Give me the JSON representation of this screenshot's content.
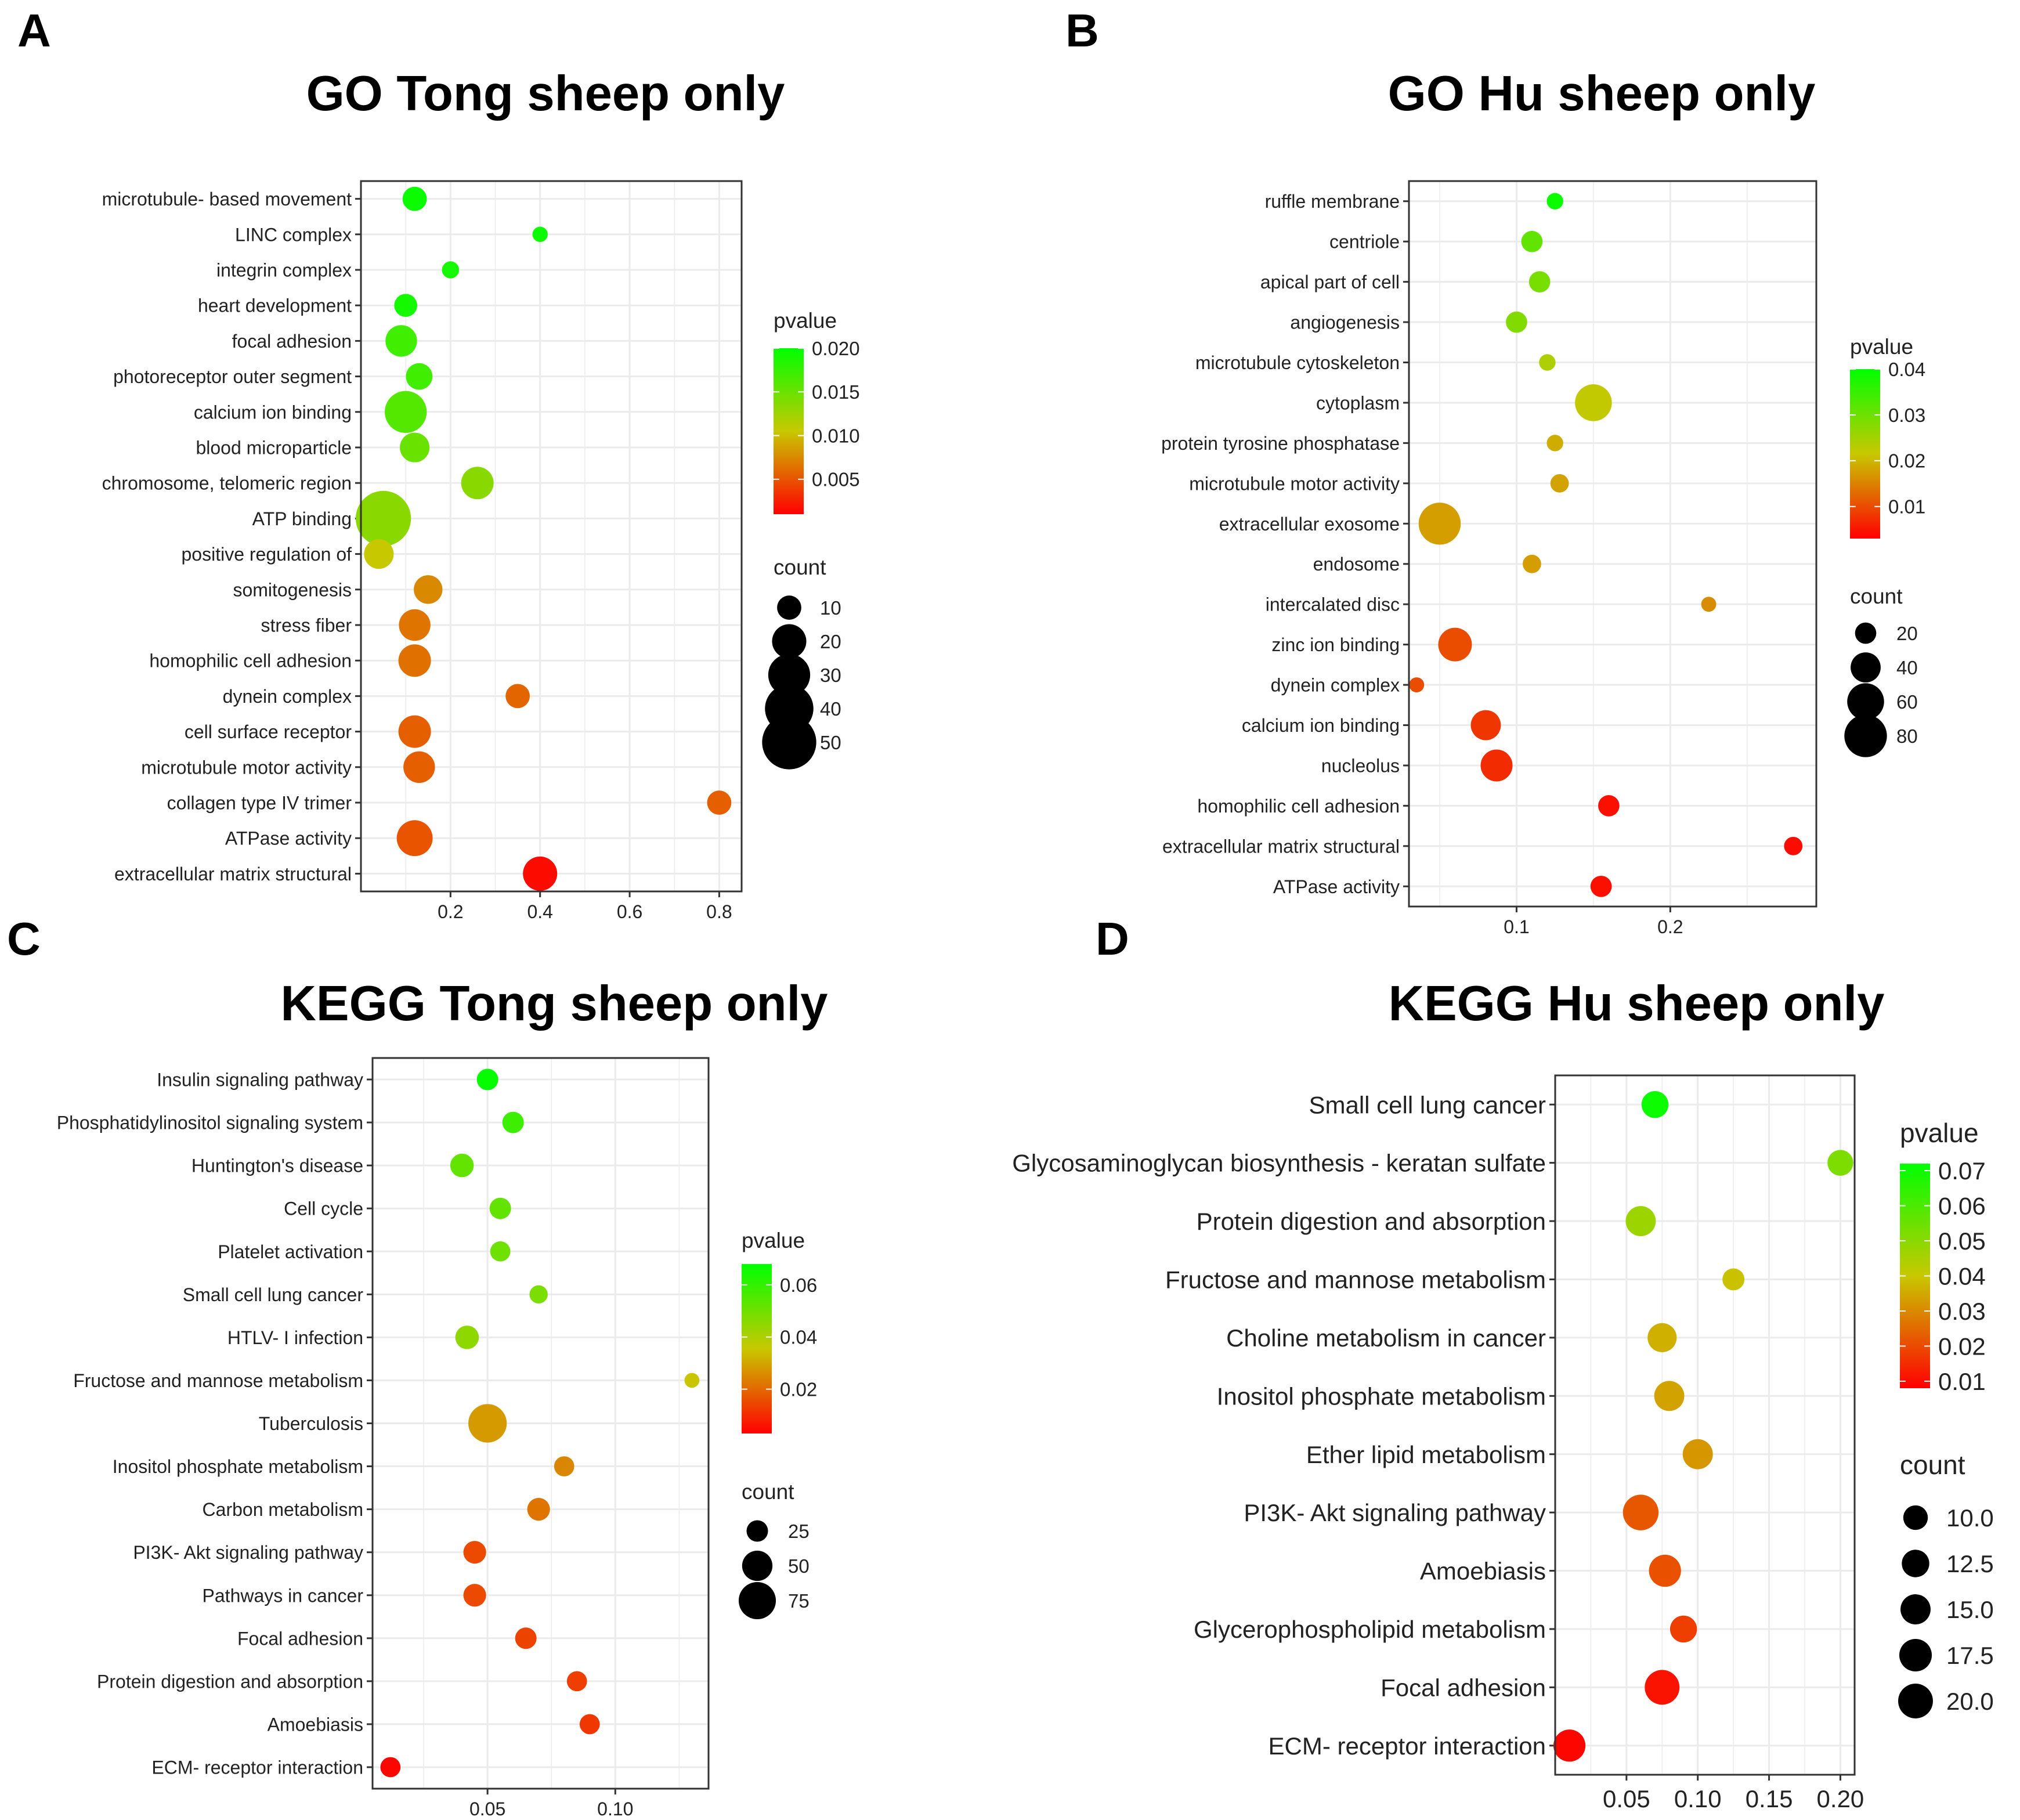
{
  "figure": {
    "panels": [
      {
        "letter": "A",
        "title": "GO Tong sheep only",
        "legend": {
          "color_title": "pvalue",
          "color_ticks": [
            "0.020",
            "0.015",
            "0.010",
            "0.005"
          ],
          "size_title": "count",
          "size_ticks": [
            "10",
            "20",
            "30",
            "40",
            "50"
          ]
        },
        "x_tick_labels": [
          "0.2",
          "0.4",
          "0.6",
          "0.8"
        ]
      },
      {
        "letter": "B",
        "title": "GO Hu sheep only",
        "legend": {
          "color_title": "pvalue",
          "color_ticks": [
            "0.04",
            "0.03",
            "0.02",
            "0.01"
          ],
          "size_title": "count",
          "size_ticks": [
            "20",
            "40",
            "60",
            "80"
          ]
        },
        "x_tick_labels": [
          "0.1",
          "0.2"
        ]
      },
      {
        "letter": "C",
        "title": "KEGG Tong sheep only",
        "legend": {
          "color_title": "pvalue",
          "color_ticks": [
            "0.06",
            "0.04",
            "0.02"
          ],
          "size_title": "count",
          "size_ticks": [
            "25",
            "50",
            "75"
          ]
        },
        "x_tick_labels": [
          "0.05",
          "0.10"
        ]
      },
      {
        "letter": "D",
        "title": "KEGG Hu sheep only",
        "legend": {
          "color_title": "pvalue",
          "color_ticks": [
            "0.07",
            "0.06",
            "0.05",
            "0.04",
            "0.03",
            "0.02",
            "0.01"
          ],
          "size_title": "count",
          "size_ticks": [
            "10.0",
            "12.5",
            "15.0",
            "17.5",
            "20.0"
          ]
        },
        "x_tick_labels": [
          "0.05",
          "0.10",
          "0.15",
          "0.20"
        ]
      }
    ]
  },
  "chart_data": [
    {
      "type": "scatter",
      "subtype": "bubble",
      "title": "GO Tong sheep only",
      "xlabel": "",
      "ylabel": "",
      "xlim": [
        0.0,
        0.85
      ],
      "x_ticks": [
        0.2,
        0.4,
        0.6,
        0.8
      ],
      "grid": true,
      "color_scale": {
        "name": "pvalue",
        "range": [
          0.001,
          0.02
        ],
        "low_color": "#ff0000",
        "mid_color": "#c8c800",
        "high_color": "#00ff00"
      },
      "size_scale": {
        "name": "count",
        "range": [
          3,
          55
        ],
        "breaks": [
          10,
          20,
          30,
          40,
          50
        ]
      },
      "categories": [
        "microtubule- based movement",
        "LINC complex",
        "integrin complex",
        "heart development",
        "focal adhesion",
        "photoreceptor outer segment",
        "calcium ion binding",
        "blood microparticle",
        "chromosome, telomeric region",
        "ATP binding",
        "positive regulation of",
        "somitogenesis",
        "stress fiber",
        "homophilic cell adhesion",
        "dynein complex",
        "cell surface receptor",
        "microtubule motor activity",
        "collagen type IV trimer",
        "ATPase activity",
        "extracellular matrix structural"
      ],
      "points": [
        {
          "label": "microtubule- based movement",
          "x": 0.12,
          "pvalue": 0.0195,
          "count": 10
        },
        {
          "label": "LINC complex",
          "x": 0.4,
          "pvalue": 0.0195,
          "count": 4
        },
        {
          "label": "integrin complex",
          "x": 0.2,
          "pvalue": 0.019,
          "count": 5
        },
        {
          "label": "heart development",
          "x": 0.1,
          "pvalue": 0.019,
          "count": 9
        },
        {
          "label": "focal adhesion",
          "x": 0.09,
          "pvalue": 0.017,
          "count": 17
        },
        {
          "label": "photoreceptor outer segment",
          "x": 0.13,
          "pvalue": 0.017,
          "count": 12
        },
        {
          "label": "calcium ion binding",
          "x": 0.1,
          "pvalue": 0.016,
          "count": 30
        },
        {
          "label": "blood microparticle",
          "x": 0.12,
          "pvalue": 0.015,
          "count": 15
        },
        {
          "label": "chromosome, telomeric region",
          "x": 0.26,
          "pvalue": 0.0135,
          "count": 18
        },
        {
          "label": "ATP binding",
          "x": 0.05,
          "pvalue": 0.0135,
          "count": 52
        },
        {
          "label": "positive regulation of",
          "x": 0.04,
          "pvalue": 0.0105,
          "count": 15
        },
        {
          "label": "somitogenesis",
          "x": 0.15,
          "pvalue": 0.0075,
          "count": 14
        },
        {
          "label": "stress fiber",
          "x": 0.12,
          "pvalue": 0.0065,
          "count": 17
        },
        {
          "label": "homophilic cell adhesion",
          "x": 0.12,
          "pvalue": 0.0063,
          "count": 18
        },
        {
          "label": "dynein complex",
          "x": 0.35,
          "pvalue": 0.0058,
          "count": 10
        },
        {
          "label": "cell surface receptor",
          "x": 0.12,
          "pvalue": 0.0055,
          "count": 18
        },
        {
          "label": "microtubule motor activity",
          "x": 0.13,
          "pvalue": 0.0055,
          "count": 17
        },
        {
          "label": "collagen type IV trimer",
          "x": 0.8,
          "pvalue": 0.0055,
          "count": 10
        },
        {
          "label": "ATPase activity",
          "x": 0.12,
          "pvalue": 0.005,
          "count": 22
        },
        {
          "label": "extracellular matrix structural",
          "x": 0.4,
          "pvalue": 0.0015,
          "count": 20
        }
      ]
    },
    {
      "type": "scatter",
      "subtype": "bubble",
      "title": "GO Hu sheep only",
      "xlabel": "",
      "ylabel": "",
      "xlim": [
        0.03,
        0.295
      ],
      "x_ticks": [
        0.1,
        0.2
      ],
      "grid": true,
      "color_scale": {
        "name": "pvalue",
        "range": [
          0.003,
          0.04
        ],
        "low_color": "#ff0000",
        "mid_color": "#c8c800",
        "high_color": "#00ff00"
      },
      "size_scale": {
        "name": "count",
        "range": [
          5,
          90
        ],
        "breaks": [
          20,
          40,
          60,
          80
        ]
      },
      "categories": [
        "ruffle membrane",
        "centriole",
        "apical part of cell",
        "angiogenesis",
        "microtubule cytoskeleton",
        "cytoplasm",
        "protein tyrosine phosphatase",
        "microtubule motor activity",
        "extracellular exosome",
        "endosome",
        "intercalated disc",
        "zinc ion binding",
        "dynein complex",
        "calcium ion binding",
        "nucleolus",
        "homophilic cell adhesion",
        "extracellular matrix structural",
        "ATPase activity"
      ],
      "points": [
        {
          "label": "ruffle membrane",
          "x": 0.125,
          "pvalue": 0.039,
          "count": 12
        },
        {
          "label": "centriole",
          "x": 0.11,
          "pvalue": 0.031,
          "count": 20
        },
        {
          "label": "apical part of cell",
          "x": 0.115,
          "pvalue": 0.029,
          "count": 20
        },
        {
          "label": "angiogenesis",
          "x": 0.1,
          "pvalue": 0.028,
          "count": 20
        },
        {
          "label": "microtubule cytoskeleton",
          "x": 0.12,
          "pvalue": 0.024,
          "count": 12
        },
        {
          "label": "cytoplasm",
          "x": 0.15,
          "pvalue": 0.022,
          "count": 60
        },
        {
          "label": "protein tyrosine phosphatase",
          "x": 0.125,
          "pvalue": 0.019,
          "count": 12
        },
        {
          "label": "microtubule motor activity",
          "x": 0.128,
          "pvalue": 0.018,
          "count": 15
        },
        {
          "label": "extracellular exosome",
          "x": 0.05,
          "pvalue": 0.0175,
          "count": 78
        },
        {
          "label": "endosome",
          "x": 0.11,
          "pvalue": 0.0175,
          "count": 15
        },
        {
          "label": "intercalated disc",
          "x": 0.225,
          "pvalue": 0.016,
          "count": 10
        },
        {
          "label": "zinc ion binding",
          "x": 0.06,
          "pvalue": 0.01,
          "count": 50
        },
        {
          "label": "dynein complex",
          "x": 0.035,
          "pvalue": 0.01,
          "count": 10
        },
        {
          "label": "calcium ion binding",
          "x": 0.08,
          "pvalue": 0.008,
          "count": 40
        },
        {
          "label": "nucleolus",
          "x": 0.087,
          "pvalue": 0.007,
          "count": 45
        },
        {
          "label": "homophilic cell adhesion",
          "x": 0.16,
          "pvalue": 0.0045,
          "count": 20
        },
        {
          "label": "extracellular matrix structural",
          "x": 0.28,
          "pvalue": 0.004,
          "count": 15
        },
        {
          "label": "ATPase activity",
          "x": 0.155,
          "pvalue": 0.0045,
          "count": 20
        }
      ]
    },
    {
      "type": "scatter",
      "subtype": "bubble",
      "title": "KEGG Tong sheep only",
      "xlabel": "",
      "ylabel": "",
      "xlim": [
        0.005,
        0.1365
      ],
      "x_ticks": [
        0.05,
        0.1
      ],
      "grid": true,
      "color_scale": {
        "name": "pvalue",
        "range": [
          0.003,
          0.068
        ],
        "low_color": "#ff0000",
        "mid_color": "#c8c800",
        "high_color": "#00ff00"
      },
      "size_scale": {
        "name": "count",
        "range": [
          5,
          85
        ],
        "breaks": [
          25,
          50,
          75
        ]
      },
      "categories": [
        "Insulin signaling pathway",
        "Phosphatidylinositol signaling system",
        "Huntington's disease",
        "Cell cycle",
        "Platelet activation",
        "Small cell lung cancer",
        "HTLV- I infection",
        "Fructose and mannose metabolism",
        "Tuberculosis",
        "Inositol phosphate metabolism",
        "Carbon metabolism",
        "PI3K- Akt signaling pathway",
        "Pathways in cancer",
        "Focal adhesion",
        "Protein digestion and absorption",
        "Amoebiasis",
        "ECM- receptor interaction"
      ],
      "points": [
        {
          "label": "Insulin signaling pathway",
          "x": 0.05,
          "pvalue": 0.067,
          "count": 25
        },
        {
          "label": "Phosphatidylinositol signaling system",
          "x": 0.06,
          "pvalue": 0.058,
          "count": 25
        },
        {
          "label": "Huntington's disease",
          "x": 0.04,
          "pvalue": 0.052,
          "count": 30
        },
        {
          "label": "Cell cycle",
          "x": 0.055,
          "pvalue": 0.052,
          "count": 25
        },
        {
          "label": "Platelet activation",
          "x": 0.055,
          "pvalue": 0.05,
          "count": 22
        },
        {
          "label": "Small cell lung cancer",
          "x": 0.07,
          "pvalue": 0.048,
          "count": 18
        },
        {
          "label": "HTLV- I infection",
          "x": 0.042,
          "pvalue": 0.045,
          "count": 30
        },
        {
          "label": "Fructose and mannose metabolism",
          "x": 0.13,
          "pvalue": 0.035,
          "count": 12
        },
        {
          "label": "Tuberculosis",
          "x": 0.05,
          "pvalue": 0.028,
          "count": 80
        },
        {
          "label": "Inositol phosphate metabolism",
          "x": 0.08,
          "pvalue": 0.025,
          "count": 22
        },
        {
          "label": "Carbon metabolism",
          "x": 0.07,
          "pvalue": 0.022,
          "count": 28
        },
        {
          "label": "PI3K- Akt signaling pathway",
          "x": 0.045,
          "pvalue": 0.015,
          "count": 28
        },
        {
          "label": "Pathways in cancer",
          "x": 0.045,
          "pvalue": 0.015,
          "count": 28
        },
        {
          "label": "Focal adhesion",
          "x": 0.065,
          "pvalue": 0.014,
          "count": 25
        },
        {
          "label": "Protein digestion and absorption",
          "x": 0.085,
          "pvalue": 0.013,
          "count": 22
        },
        {
          "label": "Amoebiasis",
          "x": 0.09,
          "pvalue": 0.012,
          "count": 22
        },
        {
          "label": "ECM- receptor interaction",
          "x": 0.012,
          "pvalue": 0.004,
          "count": 22
        }
      ]
    },
    {
      "type": "scatter",
      "subtype": "bubble",
      "title": "KEGG Hu sheep only",
      "xlabel": "",
      "ylabel": "",
      "xlim": [
        0.0,
        0.21
      ],
      "x_ticks": [
        0.05,
        0.1,
        0.15,
        0.2
      ],
      "grid": true,
      "color_scale": {
        "name": "pvalue",
        "range": [
          0.008,
          0.072
        ],
        "low_color": "#ff0000",
        "mid_color": "#c8c800",
        "high_color": "#00ff00"
      },
      "size_scale": {
        "name": "count",
        "range": [
          5,
          22
        ],
        "breaks": [
          10.0,
          12.5,
          15.0,
          17.5,
          20.0
        ]
      },
      "categories": [
        "Small cell lung cancer",
        "Glycosaminoglycan biosynthesis -  keratan sulfate",
        "Protein digestion and absorption",
        "Fructose and mannose metabolism",
        "Choline metabolism in cancer",
        "Inositol phosphate metabolism",
        "Ether lipid metabolism",
        "PI3K- Akt signaling pathway",
        "Amoebiasis",
        "Glycerophospholipid metabolism",
        "Focal adhesion",
        "ECM- receptor interaction"
      ],
      "points": [
        {
          "label": "Small cell lung cancer",
          "x": 0.07,
          "pvalue": 0.07,
          "count": 12
        },
        {
          "label": "Glycosaminoglycan biosynthesis -  keratan sulfate",
          "x": 0.2,
          "pvalue": 0.052,
          "count": 11
        },
        {
          "label": "Protein digestion and absorption",
          "x": 0.06,
          "pvalue": 0.047,
          "count": 15
        },
        {
          "label": "Fructose and mannose metabolism",
          "x": 0.125,
          "pvalue": 0.039,
          "count": 8
        },
        {
          "label": "Choline metabolism in cancer",
          "x": 0.075,
          "pvalue": 0.036,
          "count": 14
        },
        {
          "label": "Inositol phosphate metabolism",
          "x": 0.08,
          "pvalue": 0.034,
          "count": 15
        },
        {
          "label": "Ether lipid metabolism",
          "x": 0.1,
          "pvalue": 0.032,
          "count": 15
        },
        {
          "label": "PI3K- Akt signaling pathway",
          "x": 0.06,
          "pvalue": 0.022,
          "count": 21
        },
        {
          "label": "Amoebiasis",
          "x": 0.077,
          "pvalue": 0.021,
          "count": 17
        },
        {
          "label": "Glycerophospholipid metabolism",
          "x": 0.09,
          "pvalue": 0.018,
          "count": 12
        },
        {
          "label": "Focal adhesion",
          "x": 0.075,
          "pvalue": 0.011,
          "count": 20
        },
        {
          "label": "ECM- receptor interaction",
          "x": 0.01,
          "pvalue": 0.009,
          "count": 17
        }
      ]
    }
  ]
}
